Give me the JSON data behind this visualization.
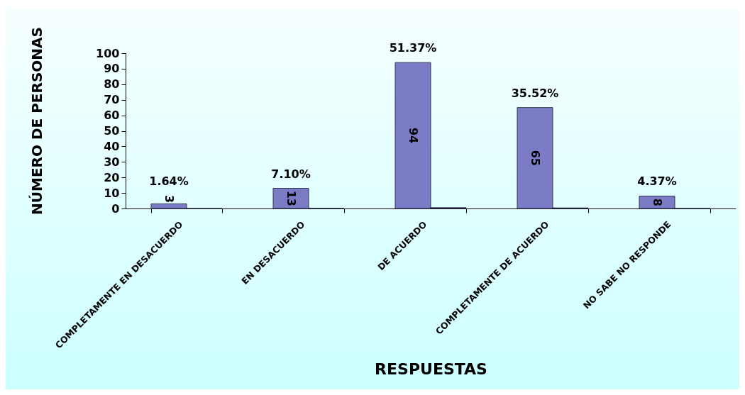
{
  "chart_data": {
    "type": "bar",
    "xlabel": "RESPUESTAS",
    "ylabel": "NÚMERO DE PERSONAS",
    "categories": [
      "COMPLETAMENTE EN DESACUERDO",
      "EN DESACUERDO",
      "DE ACUERDO",
      "COMPLETAMENTE DE ACUERDO",
      "NO SABE NO RESPONDE"
    ],
    "series": [
      {
        "color": "#7b7bc6",
        "values": [
          3,
          13,
          94,
          65,
          8
        ],
        "value_labels": [
          "3",
          "13",
          "94",
          "65",
          "8"
        ]
      },
      {
        "color": "#262648",
        "values": [
          0.0164,
          0.071,
          0.5137,
          0.3552,
          0.0437
        ]
      }
    ],
    "annotations": [
      {
        "text": "1.64%",
        "x": "COMPLETAMENTE EN DESACUERDO",
        "y": 3
      },
      {
        "text": "7.10%",
        "x": "EN DESACUERDO",
        "y": 13
      },
      {
        "text": "51.37%",
        "x": "DE ACUERDO",
        "y": 94
      },
      {
        "text": "35.52%",
        "x": "COMPLETAMENTE DE ACUERDO",
        "y": 65
      },
      {
        "text": "4.37%",
        "x": "NO SABE NO RESPONDE",
        "y": 8
      }
    ],
    "ylim": [
      0,
      100
    ],
    "yticks": [
      0,
      10,
      20,
      30,
      40,
      50,
      60,
      70,
      80,
      90,
      100
    ],
    "grid": false
  }
}
